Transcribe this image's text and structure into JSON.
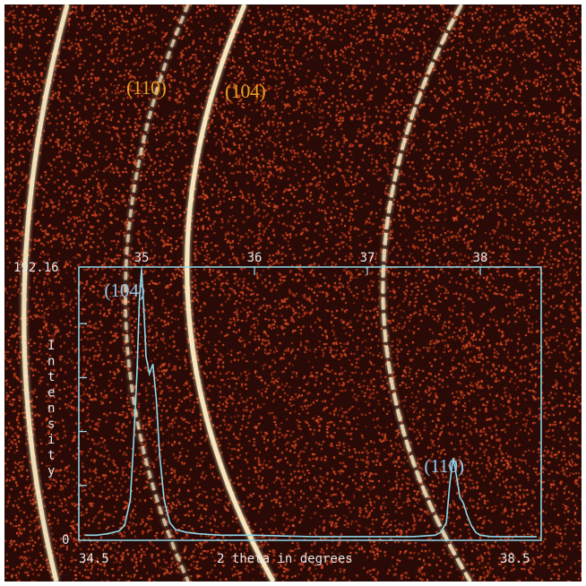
{
  "image_labels": {
    "ring_110": "(110)",
    "ring_104": "(104)"
  },
  "colors": {
    "background": "#2a0a06",
    "speckle": "#c84628",
    "ring": "#fff2c8",
    "ring_label": "#e8a020",
    "plot_line": "#8fd8e8",
    "plot_text": "#e6e6e6"
  },
  "chart_data": {
    "type": "line",
    "xlabel": "2 theta in degrees",
    "ylabel": "Intensity",
    "xlim": [
      34.5,
      38.5
    ],
    "ylim": [
      0,
      192.16
    ],
    "y_max_label": "192.16",
    "y_min_label": "0",
    "x_bottom_labels": [
      "34.5",
      "38.5"
    ],
    "x_top_ticks": [
      {
        "value": 35,
        "label": "35"
      },
      {
        "value": 36,
        "label": "36"
      },
      {
        "value": 37,
        "label": "37"
      },
      {
        "value": 38,
        "label": "38"
      }
    ],
    "annotations": [
      {
        "text": "(104)",
        "x": 34.85,
        "y": 173
      },
      {
        "text": "(110)",
        "x": 37.68,
        "y": 48
      }
    ],
    "series": [
      {
        "x": [
          34.5,
          34.6,
          34.7,
          34.8,
          34.85,
          34.9,
          34.93,
          34.96,
          34.98,
          35.0,
          35.02,
          35.04,
          35.07,
          35.1,
          35.13,
          35.16,
          35.2,
          35.25,
          35.3,
          35.4,
          35.5,
          35.7,
          36.0,
          36.5,
          37.0,
          37.4,
          37.6,
          37.65,
          37.7,
          37.73,
          37.76,
          37.79,
          37.82,
          37.85,
          37.88,
          37.92,
          37.96,
          38.0,
          38.1,
          38.3,
          38.5
        ],
        "y": [
          3,
          3,
          4,
          6,
          10,
          28,
          70,
          120,
          170,
          192,
          165,
          130,
          118,
          125,
          100,
          60,
          28,
          12,
          7,
          5,
          4,
          3,
          3,
          2,
          2,
          2,
          3,
          5,
          12,
          40,
          58,
          45,
          30,
          26,
          18,
          10,
          5,
          3,
          2,
          2,
          2
        ]
      }
    ]
  }
}
